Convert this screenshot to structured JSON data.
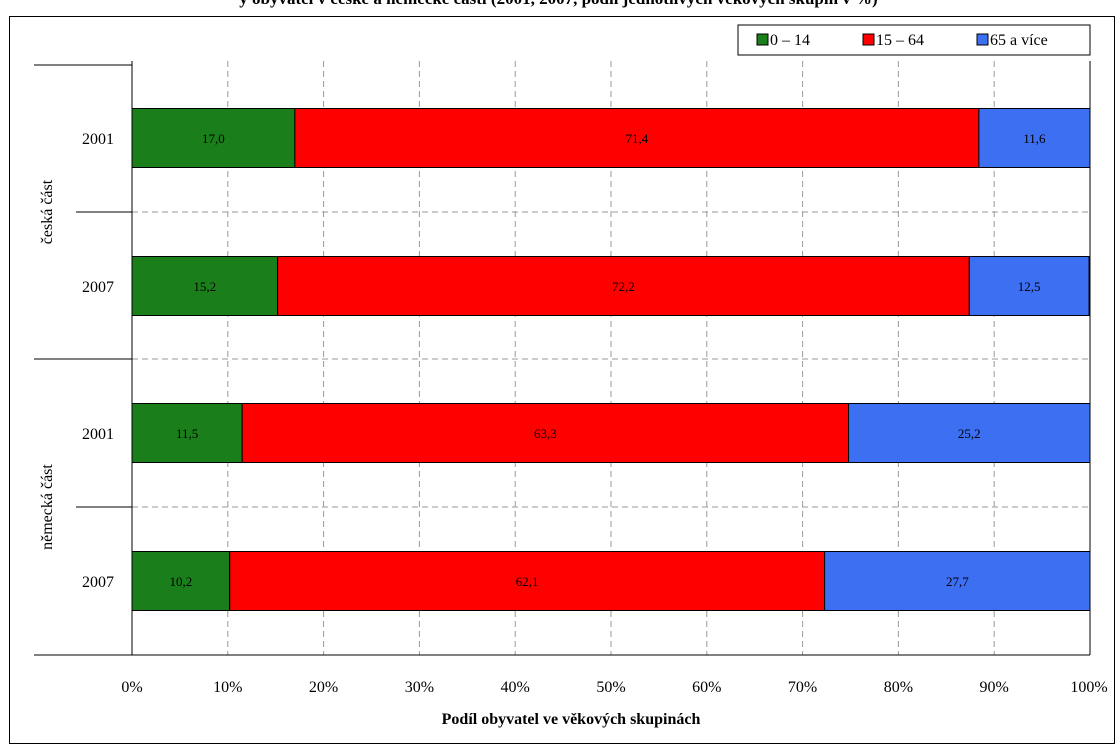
{
  "page_title": "y obyvatel v české a německé části (2001, 2007, podíl jednotlivých věkových skupin v %)",
  "chart_data": {
    "type": "bar",
    "orientation": "horizontal",
    "stacked": "percent",
    "xlabel": "Podíl obyvatel ve věkových skupinách",
    "x_ticks": [
      "0%",
      "10%",
      "20%",
      "30%",
      "40%",
      "50%",
      "60%",
      "70%",
      "80%",
      "90%",
      "100%"
    ],
    "xlim": [
      0,
      100
    ],
    "grid": true,
    "legend_position": "top-right",
    "groups": [
      {
        "label": "česká část",
        "categories": [
          "2001",
          "2007"
        ]
      },
      {
        "label": "německá část",
        "categories": [
          "2001",
          "2007"
        ]
      }
    ],
    "categories": [
      "2001",
      "2007",
      "2001",
      "2007"
    ],
    "series": [
      {
        "name": "0 – 14",
        "color": "#1a7f1a",
        "values": [
          17.0,
          15.2,
          11.5,
          10.2
        ],
        "labels": [
          "17,0",
          "15,2",
          "11,5",
          "10,2"
        ]
      },
      {
        "name": "15 – 64",
        "color": "#ff0000",
        "values": [
          71.4,
          72.2,
          63.3,
          62.1
        ],
        "labels": [
          "71,4",
          "72,2",
          "63,3",
          "62,1"
        ]
      },
      {
        "name": "65 a více",
        "color": "#3d6ff2",
        "values": [
          11.6,
          12.5,
          25.2,
          27.7
        ],
        "labels": [
          "11,6",
          "12,5",
          "25,2",
          "27,7"
        ]
      }
    ]
  }
}
